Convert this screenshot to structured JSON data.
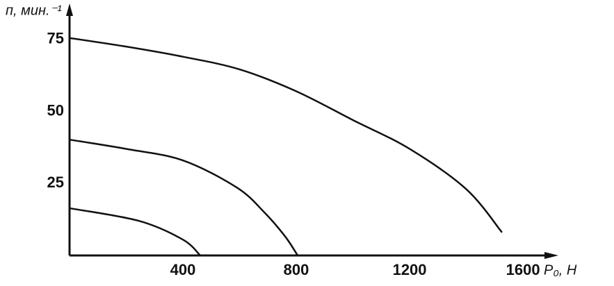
{
  "chart_data": {
    "type": "line",
    "y_label": "п, мин.⁻¹",
    "x_label": "Р₀, Н",
    "xlim": [
      0,
      1720
    ],
    "ylim": [
      0,
      87
    ],
    "xticks": [
      400,
      800,
      1200,
      1600
    ],
    "yticks": [
      25,
      50,
      75
    ],
    "grid": false,
    "series": [
      {
        "color": "#111111",
        "x": [
          0,
          200,
          400,
          600,
          800,
          1000,
          1200,
          1400,
          1526
        ],
        "values": [
          75.5,
          72.5,
          69,
          64.6,
          57,
          47,
          37,
          23,
          8
        ]
      },
      {
        "color": "#111111",
        "x": [
          0,
          200,
          400,
          590,
          687,
          760,
          805
        ],
        "values": [
          40.2,
          37,
          33,
          23.6,
          15,
          6.7,
          0
        ]
      },
      {
        "color": "#111111",
        "x": [
          0,
          245,
          400,
          461
        ],
        "values": [
          16.4,
          12,
          5.5,
          0
        ]
      }
    ]
  }
}
